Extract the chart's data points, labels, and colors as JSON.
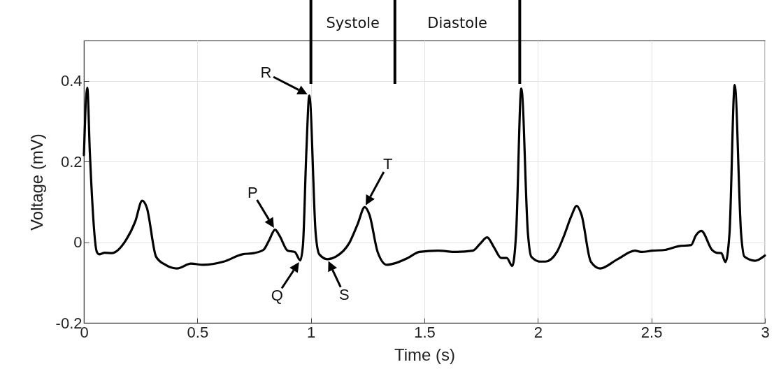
{
  "chart_data": {
    "type": "line",
    "xlabel": "Time (s)",
    "ylabel": "Voltage (mV)",
    "xlim": [
      0,
      3
    ],
    "xticks": [
      0,
      0.5,
      1,
      1.5,
      2,
      2.5,
      3
    ],
    "ylim": [
      -0.2,
      0.5
    ],
    "yticks": [
      -0.2,
      0,
      0.2,
      0.4
    ],
    "grid": true,
    "line_style": "solid",
    "series": [
      {
        "color": "#000000",
        "x": [
          0,
          0.015,
          0.026,
          0.057,
          0.067,
          0.092,
          0.123,
          0.185,
          0.226,
          0.257,
          0.277,
          0.318,
          0.359,
          0.411,
          0.472,
          0.524,
          0.616,
          0.698,
          0.749,
          0.791,
          0.816,
          0.842,
          0.862,
          0.898,
          0.929,
          0.953,
          0.965,
          0.98,
          0.993,
          1.021,
          1.037,
          1.073,
          1.109,
          1.17,
          1.206,
          1.237,
          1.258,
          1.294,
          1.335,
          1.365,
          1.427,
          1.478,
          1.56,
          1.642,
          1.714,
          1.745,
          1.776,
          1.807,
          1.838,
          1.863,
          1.887,
          1.904,
          1.927,
          1.956,
          1.971,
          2.012,
          2.033,
          2.084,
          2.115,
          2.146,
          2.171,
          2.192,
          2.233,
          2.274,
          2.351,
          2.428,
          2.454,
          2.505,
          2.561,
          2.618,
          2.675,
          2.695,
          2.72,
          2.767,
          2.787,
          2.808,
          2.826,
          2.844,
          2.867,
          2.895,
          2.91,
          2.957,
          3.0
        ],
        "values": [
          0.216,
          0.383,
          0.225,
          -0.024,
          -0.03,
          -0.026,
          -0.027,
          0.005,
          0.051,
          0.103,
          0.086,
          -0.036,
          -0.056,
          -0.065,
          -0.053,
          -0.056,
          -0.048,
          -0.03,
          -0.027,
          -0.019,
          0.005,
          0.031,
          0.016,
          -0.021,
          -0.024,
          -0.045,
          -0.007,
          0.225,
          0.364,
          0.022,
          -0.03,
          -0.042,
          -0.036,
          -0.001,
          0.045,
          0.087,
          0.068,
          -0.024,
          -0.056,
          -0.053,
          -0.039,
          -0.024,
          -0.021,
          -0.024,
          -0.021,
          -0.004,
          0.012,
          -0.013,
          -0.039,
          -0.039,
          -0.059,
          0.022,
          0.381,
          0.022,
          -0.036,
          -0.048,
          -0.048,
          -0.024,
          0.016,
          0.063,
          0.09,
          0.068,
          -0.048,
          -0.065,
          -0.042,
          -0.021,
          -0.024,
          -0.021,
          -0.019,
          -0.01,
          -0.007,
          0.016,
          0.028,
          -0.019,
          -0.026,
          -0.027,
          -0.049,
          0.022,
          0.39,
          0.022,
          -0.036,
          -0.046,
          -0.033
        ]
      }
    ],
    "ref_lines": [
      {
        "axis": "x",
        "value": 1.0,
        "label": "Systole"
      },
      {
        "axis": "x",
        "value": 1.37,
        "label": "Diastole"
      },
      {
        "axis": "x",
        "value": 1.92,
        "label": null
      }
    ],
    "annotations": [
      {
        "text": "R",
        "x": 0.993,
        "y": 0.364
      },
      {
        "text": "P",
        "x": 0.842,
        "y": 0.031
      },
      {
        "text": "Q",
        "x": 0.953,
        "y": -0.045
      },
      {
        "text": "S",
        "x": 1.073,
        "y": -0.042
      },
      {
        "text": "T",
        "x": 1.237,
        "y": 0.087
      }
    ]
  }
}
